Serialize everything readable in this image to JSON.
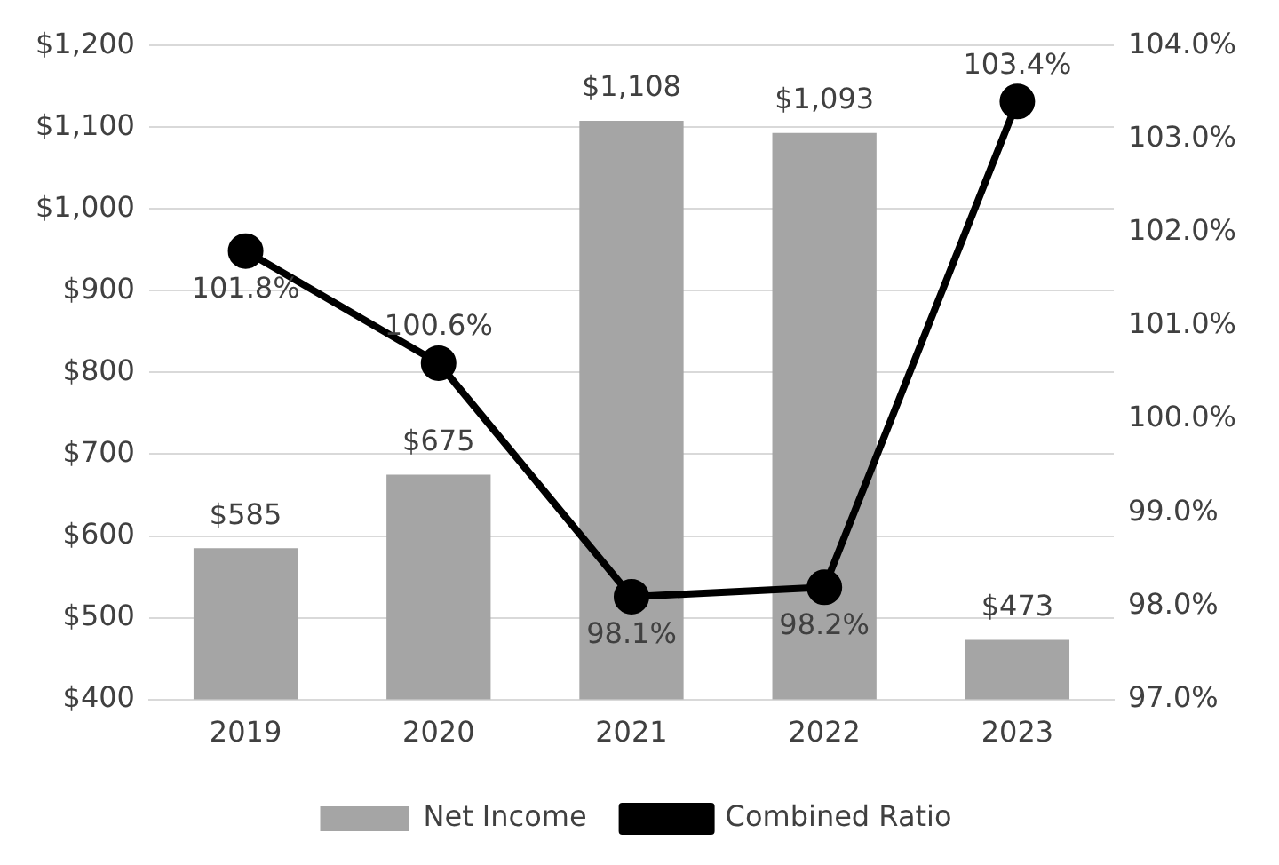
{
  "chart_data": {
    "type": "bar",
    "categories": [
      "2019",
      "2020",
      "2021",
      "2022",
      "2023"
    ],
    "series": [
      {
        "name": "Net Income",
        "color": "#a5a5a5",
        "values": [
          585,
          675,
          1108,
          1093,
          473
        ],
        "value_labels": [
          "$585",
          "$675",
          "$1,108",
          "$1,093",
          "$473"
        ]
      },
      {
        "name": "Combined Ratio",
        "type": "line",
        "axis": "y2",
        "color": "#000000",
        "marker": "circle",
        "values": [
          101.8,
          100.6,
          98.1,
          98.2,
          103.4
        ],
        "value_labels": [
          "101.8%",
          "100.6%",
          "98.1%",
          "98.2%",
          "103.4%"
        ]
      }
    ],
    "ylim": [
      400,
      1200
    ],
    "yticks": [
      {
        "value": 400,
        "label": "$400"
      },
      {
        "value": 500,
        "label": "$500"
      },
      {
        "value": 600,
        "label": "$600"
      },
      {
        "value": 700,
        "label": "$700"
      },
      {
        "value": 800,
        "label": "$800"
      },
      {
        "value": 900,
        "label": "$900"
      },
      {
        "value": 1000,
        "label": "$1,000"
      },
      {
        "value": 1100,
        "label": "$1,100"
      },
      {
        "value": 1200,
        "label": "$1,200"
      }
    ],
    "y2lim": [
      97,
      104
    ],
    "y2ticks": [
      {
        "value": 97,
        "label": "97.0%"
      },
      {
        "value": 98,
        "label": "98.0%"
      },
      {
        "value": 99,
        "label": "99.0%"
      },
      {
        "value": 100,
        "label": "100.0%"
      },
      {
        "value": 101,
        "label": "101.0%"
      },
      {
        "value": 102,
        "label": "102.0%"
      },
      {
        "value": 103,
        "label": "103.0%"
      },
      {
        "value": 104,
        "label": "104.0%"
      }
    ],
    "grid": "y",
    "legend": "bottom"
  }
}
